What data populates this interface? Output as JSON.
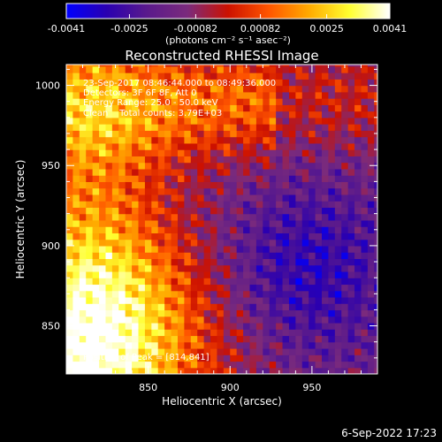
{
  "colorbar": {
    "min": -0.0041,
    "max": 0.0041,
    "tick_labels": [
      "-0.0041",
      "-0.0025",
      "-0.00082",
      "0.00082",
      "0.0025",
      "0.0041"
    ],
    "tick_values": [
      -0.0041,
      -0.0025,
      -0.00082,
      0.00082,
      0.0025,
      0.0041
    ],
    "units": "(photons cm⁻² s⁻¹ asec⁻²)",
    "colormap": [
      "#0000ff",
      "#2a00b0",
      "#5a1a8c",
      "#7b2b7c",
      "#cc1100",
      "#ff5500",
      "#ffaa00",
      "#ffff30",
      "#ffffff"
    ]
  },
  "footer": {
    "timestamp": "6-Sep-2022 17:23"
  },
  "chart_data": {
    "type": "heatmap",
    "title": "Reconstructed RHESSI Image",
    "xlabel": "Heliocentric X (arcsec)",
    "ylabel": "Heliocentric Y (arcsec)",
    "xlim": [
      800,
      990
    ],
    "ylim": [
      820,
      1013
    ],
    "xticks": [
      850,
      900,
      950
    ],
    "yticks": [
      850,
      900,
      950,
      1000
    ],
    "annotations": [
      "23-Sep-2017 08:46:44.000 to 08:49:36.000",
      "Detectors: 3F 6F 8F, Att 0",
      "Energy Range: 25.0 - 50.0 keV",
      "Clean    Total counts: 3.79E+03"
    ],
    "peak_label": "Position of Peak = [814,841]",
    "peak": [
      814,
      841
    ],
    "pixel_size_arcsec": 4,
    "grid": false
  }
}
